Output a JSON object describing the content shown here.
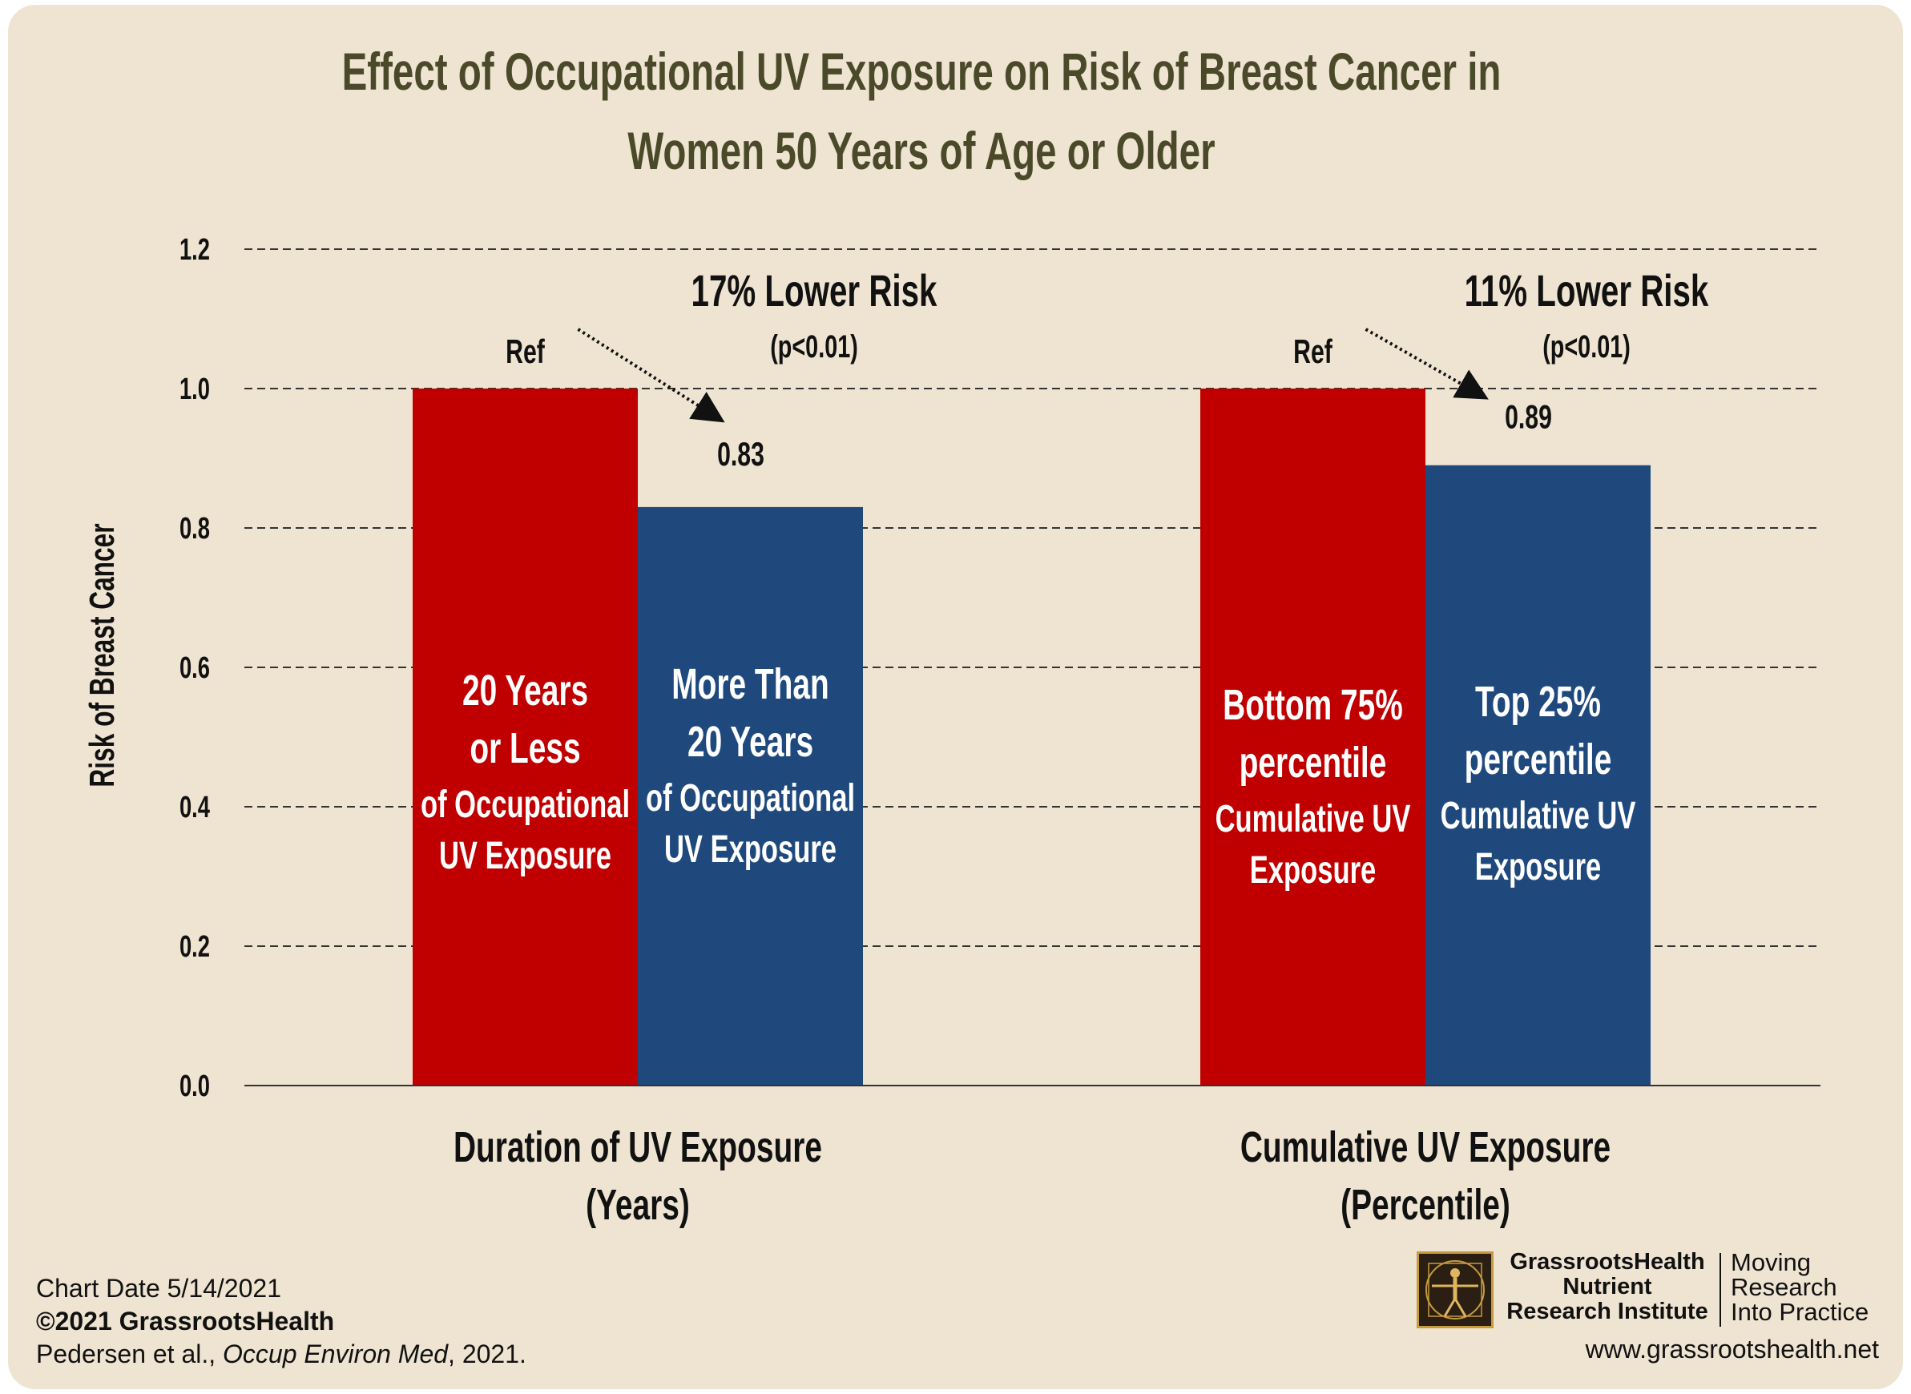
{
  "chart_data": {
    "type": "bar",
    "title_lines": [
      "Effect of Occupational UV Exposure on Risk of Breast Cancer in",
      "Women 50 Years of Age or Older"
    ],
    "ylabel": "Risk of Breast Cancer",
    "ylim": [
      0,
      1.2
    ],
    "yticks": [
      "0.0",
      "0.2",
      "0.4",
      "0.6",
      "0.8",
      "1.0",
      "1.2"
    ],
    "grid": true,
    "groups": [
      {
        "label_lines": [
          "Duration of UV Exposure",
          "(Years)"
        ],
        "bars": [
          {
            "value": 1.0,
            "color": "#c00000",
            "inner_label": [
              "20 Years",
              "or Less",
              "of Occupational",
              "UV Exposure"
            ],
            "top_label": "Ref"
          },
          {
            "value": 0.83,
            "color": "#1f497d",
            "inner_label": [
              "More Than",
              "20 Years",
              "of Occupational",
              "UV Exposure"
            ],
            "top_label": "0.83"
          }
        ],
        "annotation": {
          "headline": "17% Lower Risk",
          "pvalue": "(p<0.01)"
        }
      },
      {
        "label_lines": [
          "Cumulative UV Exposure",
          "(Percentile)"
        ],
        "bars": [
          {
            "value": 1.0,
            "color": "#c00000",
            "inner_label": [
              "Bottom 75%",
              "percentile",
              "Cumulative UV",
              "Exposure"
            ],
            "top_label": "Ref"
          },
          {
            "value": 0.89,
            "color": "#1f497d",
            "inner_label": [
              "Top 25%",
              "percentile",
              "Cumulative UV",
              "Exposure"
            ],
            "top_label": "0.89"
          }
        ],
        "annotation": {
          "headline": "11% Lower Risk",
          "pvalue": "(p<0.01)"
        }
      }
    ]
  },
  "footer": {
    "chart_date": "Chart Date 5/14/2021",
    "copyright": "©2021 GrassrootsHealth",
    "citation_authors": "Pedersen et al., ",
    "citation_journal": "Occup Environ Med",
    "citation_year": ", 2021.",
    "logo_name_lines": [
      "GrassrootsHealth",
      "Nutrient",
      "Research Institute"
    ],
    "logo_tagline_lines": [
      "Moving",
      "Research",
      "Into Practice"
    ],
    "website": "www.grassrootshealth.net"
  },
  "colors": {
    "background": "#efe4d2",
    "title": "#4a4a2a",
    "ref_bar": "#c00000",
    "compare_bar": "#1f497d"
  }
}
